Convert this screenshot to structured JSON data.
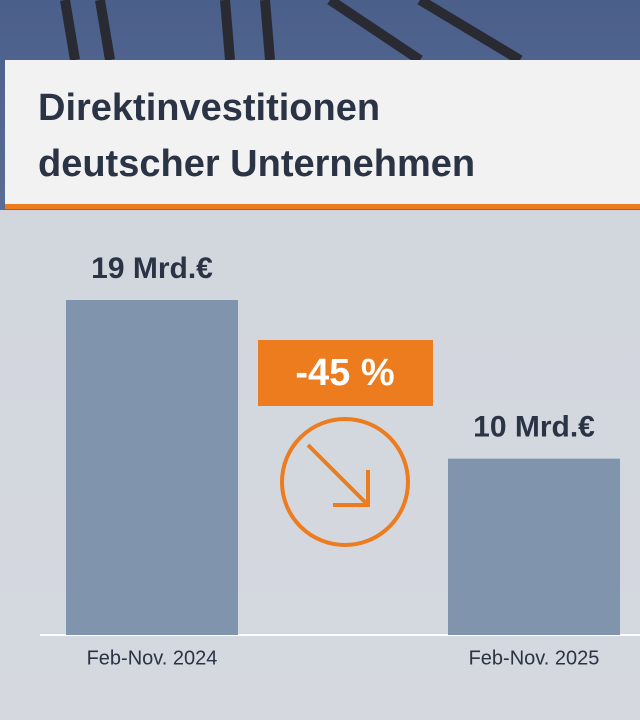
{
  "chart_data": {
    "type": "bar",
    "title": "Direktinvestitionen deutscher Unternehmen",
    "categories": [
      "Feb-Nov. 2024",
      "Feb-Nov. 2025"
    ],
    "values": [
      19,
      10
    ],
    "value_labels": [
      "19 Mrd.€",
      "10 Mrd.€"
    ],
    "color": "#8094ad",
    "annotation": "-45 %"
  }
}
